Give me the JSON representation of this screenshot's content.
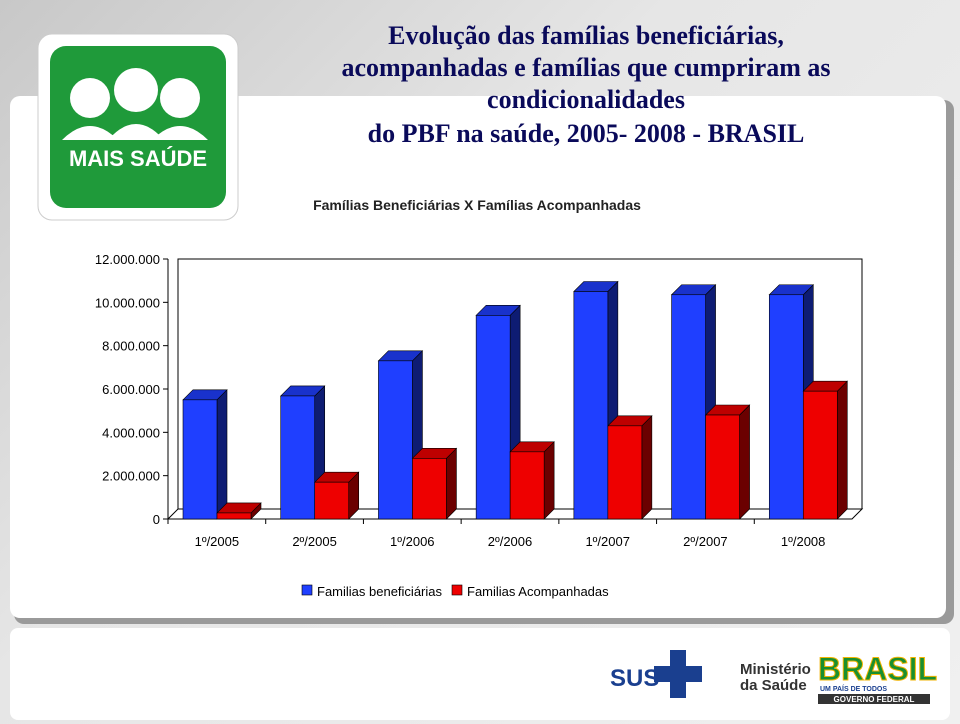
{
  "slide": {
    "title_lines": [
      "Evolução das famílias beneficiárias,",
      "acompanhadas e famílias que cumpriram as",
      "condicionalidades",
      "do PBF na saúde, 2005- 2008 - BRASIL"
    ],
    "logo_text": "MAIS SAÚDE",
    "footer": {
      "sus": "SUS",
      "ministry": [
        "Ministério",
        "da Saúde"
      ],
      "brasil": "BRASIL",
      "motto": "UM PAÍS DE TODOS",
      "government": "GOVERNO FEDERAL"
    }
  },
  "chart_data": {
    "type": "bar3d",
    "title": "Famílias Beneficiárias X Famílias Acompanhadas",
    "categories": [
      "1º/2005",
      "2º/2005",
      "1º/2006",
      "2º/2006",
      "1º/2007",
      "2º/2007",
      "1º/2008"
    ],
    "series": [
      {
        "name": "Familias beneficiárias",
        "color": "#1f3fff",
        "values": [
          5500000,
          5680000,
          7300000,
          9400000,
          10500000,
          10350000,
          10350000
        ]
      },
      {
        "name": "Familias Acompanhadas",
        "color": "#ee0000",
        "values": [
          280000,
          1700000,
          2800000,
          3100000,
          4300000,
          4800000,
          5900000
        ]
      }
    ],
    "ylim": [
      0,
      12000000
    ],
    "yticks": [
      0,
      {
        "value": 2000000,
        "label": "2.000.000"
      },
      {
        "value": 4000000,
        "label": "4.000.000"
      },
      {
        "value": 6000000,
        "label": "6.000.000"
      },
      {
        "value": 8000000,
        "label": "8.000.000"
      },
      {
        "value": 10000000,
        "label": "10.000.000"
      },
      {
        "value": 12000000,
        "label": "12.000.000"
      }
    ],
    "legend": "bottom"
  }
}
